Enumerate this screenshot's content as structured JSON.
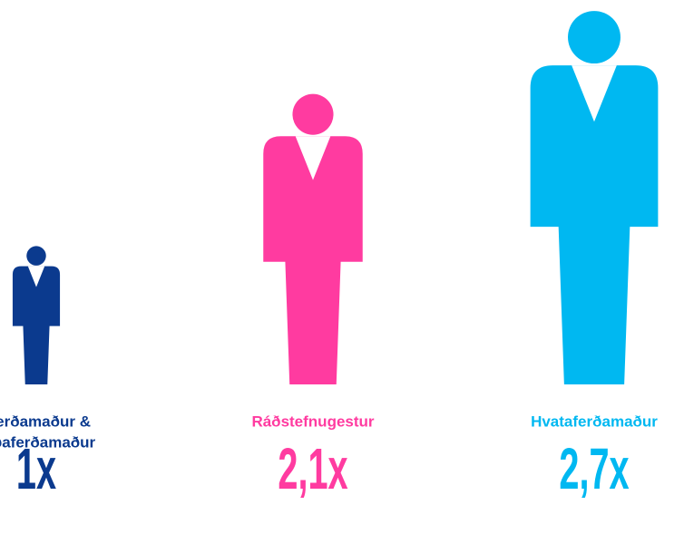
{
  "chart_data": {
    "type": "pictograph",
    "categories": [
      [
        "l ferðamaður &",
        "urðaferðamaður"
      ],
      [
        "Ráðstefnugestur"
      ],
      [
        "Hvataferðamaður"
      ]
    ],
    "values": [
      1,
      2.1,
      2.7
    ],
    "value_labels": [
      "1x",
      "2,1x",
      "2,7x"
    ],
    "colors": [
      "#0b3a8e",
      "#ff3ba0",
      "#00b8f1"
    ]
  }
}
